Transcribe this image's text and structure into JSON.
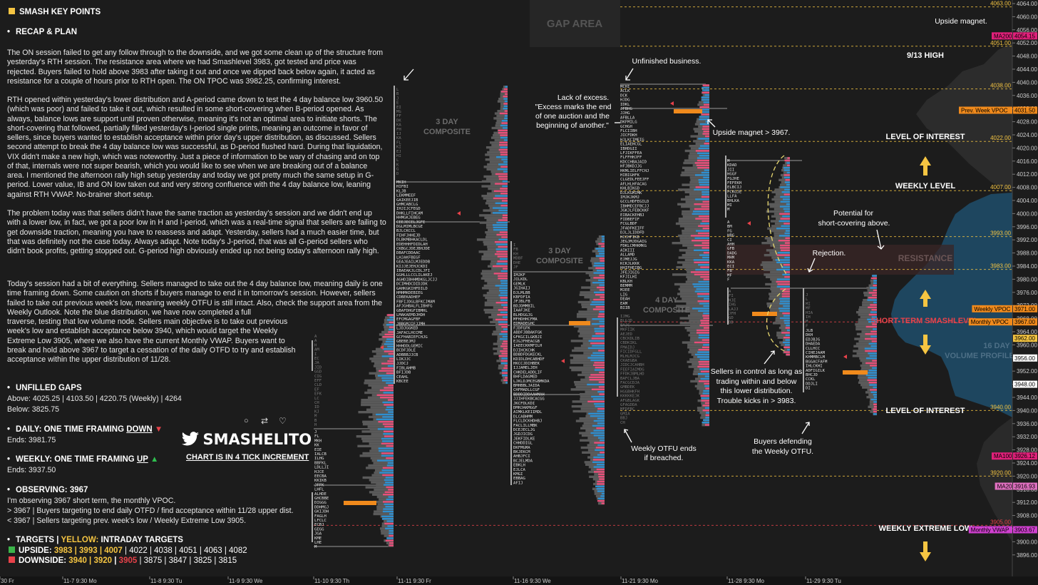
{
  "left": {
    "title": "SMASH KEY POINTS",
    "recap_header": "RECAP & PLAN",
    "recap_p1": "The ON session failed to get any follow through to the downside, and we got some clean up of the structure from yesterday's RTH session. The resistance area where we had Smashlevel 3983, got tested and price was rejected. Buyers failed to hold above 3983 after taking it out and once we dipped back below again, it acted as resistance for a couple of hours prior to RTH open. The ON TPOC was 3982.25, confirming interest.",
    "recap_p2": "RTH opened within yesterday's lower distribution and A-period came down to test the 4 day balance low 3960.50 (which was poor) and failed to take it out, which resulted in some short-covering when B-period opened. As always, balance lows are support until proven otherwise, meaning it's not an optimal area to initiate shorts. The short-covering that followed, partially filled yesterday's I-period single prints, meaning an outcome in favor of sellers, since buyers wanted to establish acceptance within prior day's upper distribution, as discussed. Sellers second attempt to break the 4 day balance low was successful, as D-period flushed hard. During that liquidation, VIX didn't make a new high, which was noteworthy. Just a piece of information to be wary of chasing and on top of that, internals were not super bearish, which you would like to see when we are breaking out of a balance area. I mentioned the afternoon rally high setup yesterday and today we got pretty much the same setup in G-period. Lower value, IB and ON low taken out and very strong confluence with the 4 day balance low, leaning against RTH VWAP. No-brainer short setup.",
    "recap_p3": "The problem today was that sellers didn't have the same traction as yesterday's session and we didn't end up with a lower low, in fact, we got a poor low in H and I-period, which was a real-time signal that sellers are failing to get downside traction, meaning you have to reassess and adapt. Yesterday, sellers had a much easier time, but that was definitely not the case today. Always adapt. Note today's J-period, that was all G-period sellers who didn't book profits, getting stopped out. G-period high obviously ended up not being today's afternoon rally high.",
    "recap_p4": "Today's session had a bit of everything. Sellers managed to take out the 4 day balance low, meaning daily is one time framing down. Some caution on shorts if buyers manage to end it in tomorrow's session. However, sellers failed to take out previous week's low, meaning weekly OTFU is still intact. Also, check the support area from the Weekly Outlook. Note the blue distribution, we have now completed a full",
    "recap_p5": "traverse, testing that low volume node. Sellers main objective is to take out previous week's low and establish acceptance below 3940, which would target the Weekly Extreme Low 3905, where we also have the current Monthly VWAP. Buyers want to break and hold above 3967 to target a cessation of the daily OTFD to try and establish acceptance within the upper distribution of 11/28.",
    "gaps_header": "UNFILLED GAPS",
    "gaps_above": "Above: 4025.25 | 4103.50 | 4220.75 (Weekly) | 4264",
    "gaps_below": "Below: 3825.75",
    "daily_header": "DAILY: ONE TIME FRAMING ",
    "daily_dir": "DOWN",
    "daily_ends": "Ends: 3981.75",
    "weekly_header": "WEEKLY: ONE TIME FRAMING ",
    "weekly_dir": "UP",
    "weekly_ends": "Ends: 3937.50",
    "obs_header": "OBSERVING: 3967",
    "obs_1": "I'm observing 3967 short term, the monthly VPOC.",
    "obs_2": "> 3967 | Buyers targeting to end daily OTFD / find acceptance within 11/28 upper dist.",
    "obs_3": "< 3967 | Sellers targeting prev. week's low / Weekly Extreme Low 3905.",
    "targets_header": "TARGETS",
    "targets_sep": " | ",
    "targets_yellow": "YELLOW:",
    "targets_intraday": " INTRADAY TARGETS",
    "upside_label": "UPSIDE: ",
    "upside_y": "3983 | 3993 | 4007",
    "upside_w": " | 4022 | 4038 | 4051 | 4063 | 4082",
    "downside_label": "DOWNSIDE: ",
    "downside_y": "3940 | 3920",
    "downside_sep": " | ",
    "downside_r": "3905",
    "downside_w": " | 3875 | 3847 | 3825 | 3815",
    "brand": "SMASHELITO",
    "chart_note": "CHART IS IN 4 TICK INCREMENT"
  },
  "colors": {
    "background": "#1c1c1c",
    "yellow": "#f5c542",
    "red_level": "#e8424a",
    "blue": "#2f8fd0",
    "pink": "#e84f7a",
    "orange": "#f08a1c",
    "gray_profile": "#5a5a5a",
    "volume_profile": "#1f4e6b",
    "ma200": "#e0207a",
    "vwap": "#d040d0"
  },
  "icons": [
    "twitter-icon",
    "reply-icon",
    "retweet-icon",
    "like-icon",
    "up-arrow-icon",
    "down-arrow-icon"
  ],
  "chart_labels": {
    "gap_area": "GAP AREA",
    "composite_3day_a": "3 DAY",
    "composite_3day_a2": "COMPOSITE",
    "composite_3day_b": "3 DAY",
    "composite_3day_b2": "COMPOSITE",
    "composite_4day": "4 DAY",
    "composite_4day2": "COMPOSITE",
    "volume_profile": "16 DAY",
    "volume_profile2": "VOLUME PROFILE",
    "resistance": "RESISTANCE",
    "upside_magnet": "Upside magnet.",
    "high_913": "9/13 HIGH",
    "unfinished": "Unfinished business.",
    "lack_excess_1": "Lack of excess.",
    "lack_excess_2": "\"Excess marks the end",
    "lack_excess_3": "of one auction and the",
    "lack_excess_4": "beginning of another.\"",
    "upside_magnet_3967": "Upside magnet > 3967.",
    "level_interest_top": "LEVEL OF INTEREST",
    "weekly_level": "WEEKLY LEVEL",
    "potential_1": "Potential for",
    "potential_2": "short-covering above.",
    "rejection": "Rejection.",
    "short_term": "SHORT-TERM SMASHLEVEL",
    "sellers_1": "Sellers in control as long as",
    "sellers_2": "trading within and below",
    "sellers_3": "this lower distribution.",
    "sellers_4": "Trouble kicks in > 3983.",
    "level_interest_bottom": "LEVEL OF INTEREST",
    "weekly_otfu_1": "Weekly OTFU ends",
    "weekly_otfu_2": "if breached.",
    "buyers_1": "Buyers defending",
    "buyers_2": "the Weekly OTFU.",
    "weekly_extreme_low": "WEEKLY EXTREME LOW"
  },
  "chart_data": {
    "type": "market-profile",
    "y_axis": {
      "min": 3894,
      "max": 4064,
      "ticks": [
        4064,
        4060,
        4056,
        4052,
        4048,
        4044,
        4040,
        4036,
        4032,
        4028,
        4024,
        4020,
        4016,
        4012,
        4008,
        4004,
        4000,
        3996,
        3992,
        3988,
        3984,
        3980,
        3976,
        3972,
        3968,
        3964,
        3960,
        3956,
        3952,
        3948,
        3944,
        3940,
        3936,
        3932,
        3928,
        3924,
        3920,
        3916,
        3912,
        3908,
        3904,
        3900,
        3896
      ],
      "tick_labels": [
        "4064.00",
        "4060.00",
        "4056.00",
        "4052.00",
        "4048.00",
        "4044.00",
        "4040.00",
        "4036.00",
        "4032.00",
        "4028.00",
        "4024.00",
        "4020.00",
        "4016.00",
        "4012.00",
        "4008.00",
        "4004.00",
        "4000.00",
        "3996.00",
        "3992.00",
        "3988.00",
        "3984.00",
        "3980.00",
        "3976.00",
        "3972.00",
        "3968.00",
        "3964.00",
        "3960.00",
        "3956.00",
        "3952.00",
        "3948.00",
        "3944.00",
        "3940.00",
        "3936.00",
        "3932.00",
        "3928.00",
        "3924.00",
        "3920.00",
        "3916.00",
        "3912.00",
        "3908.00",
        "3904.00",
        "3900.00",
        "3896.00"
      ]
    },
    "x_axis": {
      "labels": [
        "30 Fr",
        "11-7  9:30 Mo",
        "11-8  9:30 Tu",
        "11-9  9:30 We",
        "11-10  9:30 Th",
        "11-11  9:30 Fr",
        "11-16  9:30 We",
        "11-21  9:30 Mo",
        "11-28  9:30 Mo",
        "11-29  9:30 Tu"
      ]
    },
    "levels": [
      {
        "value": 4063.0,
        "label": "4063.00",
        "color": "yellow"
      },
      {
        "value": 4051.0,
        "label": "4051.00",
        "color": "yellow"
      },
      {
        "value": 4038.0,
        "label": "4038.00",
        "color": "yellow"
      },
      {
        "value": 4022.0,
        "label": "4022.00",
        "color": "yellow"
      },
      {
        "value": 4007.0,
        "label": "4007.00",
        "color": "yellow"
      },
      {
        "value": 3993.0,
        "label": "3993.00",
        "color": "yellow"
      },
      {
        "value": 3983.0,
        "label": "3983.00",
        "color": "yellow"
      },
      {
        "value": 3967.0,
        "label": "",
        "color": "red"
      },
      {
        "value": 3940.0,
        "label": "3940.00",
        "color": "yellow"
      },
      {
        "value": 3920.0,
        "label": "3920.00",
        "color": "yellow"
      },
      {
        "value": 3905.0,
        "label": "3905.00",
        "color": "red"
      }
    ],
    "badges": [
      {
        "name": "MA200",
        "value": 4054.15,
        "text": "4054.15",
        "color": "#e0207a"
      },
      {
        "name": "Prev. Week VPOC",
        "value": 4031.5,
        "text": "4031.50",
        "color": "#f08a1c"
      },
      {
        "name": "Weekly VPOC",
        "value": 3971.0,
        "text": "3971.00",
        "color": "#f08a1c"
      },
      {
        "name": "Monthly VPOC",
        "value": 3967.0,
        "text": "3967.00",
        "color": "#f08a1c"
      },
      {
        "name": "",
        "value": 3962.0,
        "text": "3962.00",
        "color": "#f5c542"
      },
      {
        "name": "",
        "value": 3956.0,
        "text": "3956.00",
        "color": "#ffffff"
      },
      {
        "name": "",
        "value": 3948.0,
        "text": "3948.00",
        "color": "#ffffff"
      },
      {
        "name": "MA100",
        "value": 3926.12,
        "text": "3926.12",
        "color": "#e0207a"
      },
      {
        "name": "MA20",
        "value": 3916.93,
        "text": "3916.93",
        "color": "#e070c0"
      },
      {
        "name": "Monthly VWAP",
        "value": 3903.67,
        "text": "3903.67",
        "color": "#d040d0"
      }
    ]
  }
}
